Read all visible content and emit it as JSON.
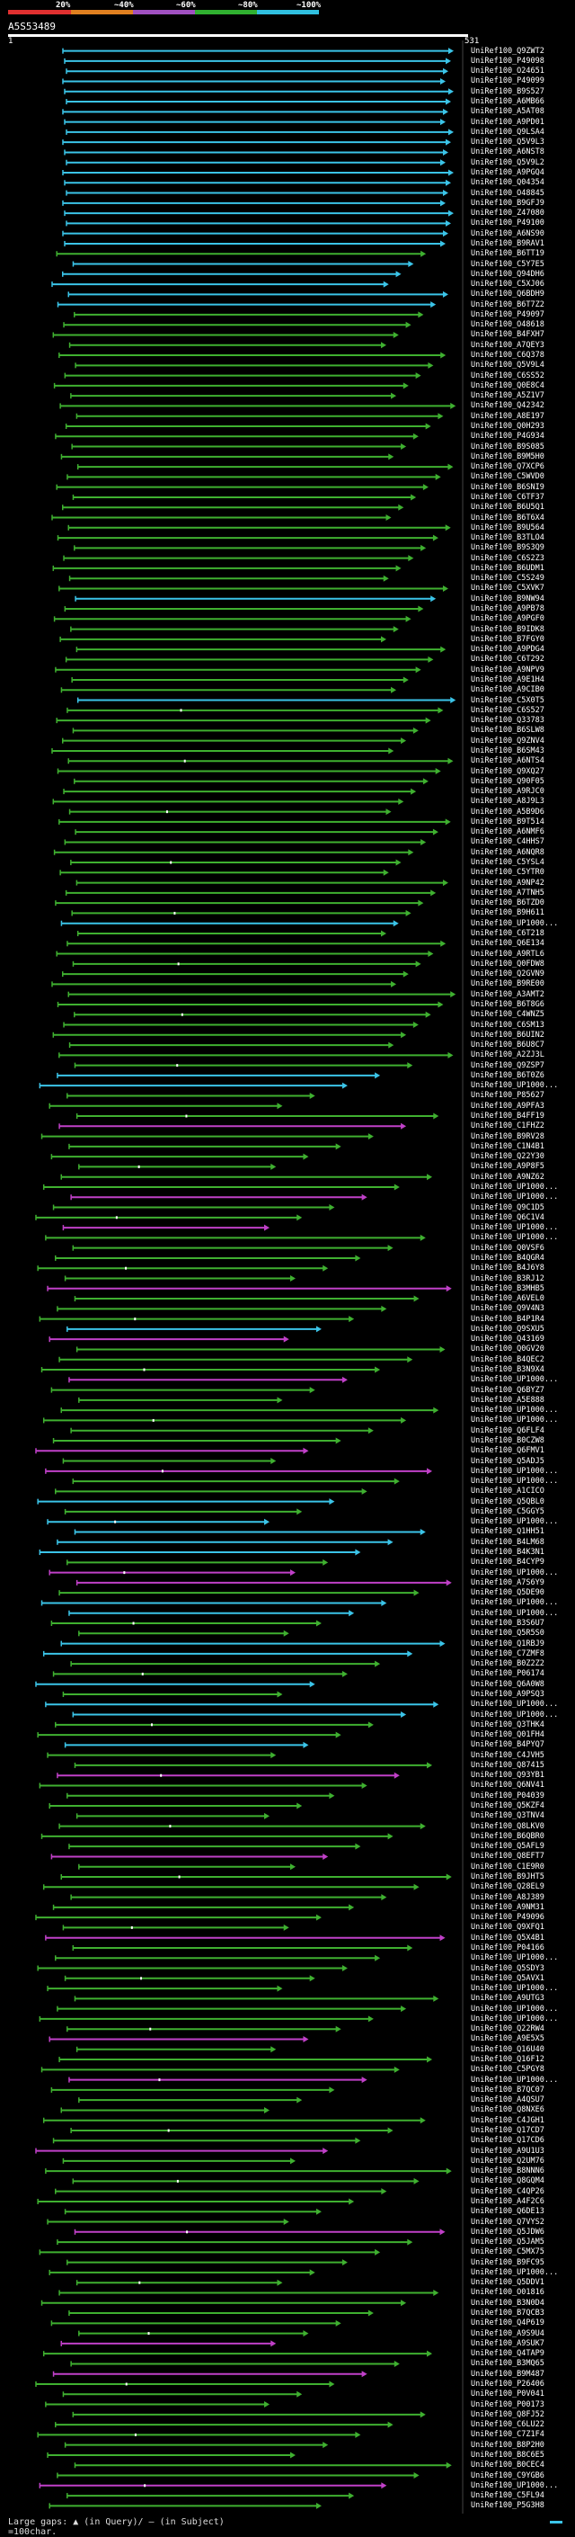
{
  "query": {
    "name": "A5S53489",
    "start": "1",
    "end": "531"
  },
  "scale": {
    "labels": [
      "20%",
      "~40%",
      "~60%",
      "~80%",
      "~100%"
    ],
    "colors": [
      "#e03030",
      "#e08020",
      "#a050c0",
      "#30b030",
      "#30c0e0"
    ]
  },
  "hit_colors": {
    "c": "#3bc4e8",
    "g": "#3fb030",
    "m": "#c040c8"
  },
  "hits": [
    "UniRef100_Q9ZWT2",
    "UniRef100_P49098",
    "UniRef100_O24651",
    "UniRef100_P49099",
    "UniRef100_B9S527",
    "UniRef100_A6MB66",
    "UniRef100_A5AT08",
    "UniRef100_A9PD01",
    "UniRef100_Q9LSA4",
    "UniRef100_Q5V9L3",
    "UniRef100_A6NST8",
    "UniRef100_Q5V9L2",
    "UniRef100_A9PGQ4",
    "UniRef100_Q04354",
    "UniRef100_O48845",
    "UniRef100_B9GFJ9",
    "UniRef100_Z47080",
    "UniRef100_P49100",
    "UniRef100_A6NS90",
    "UniRef100_B9RAV1",
    "UniRef100_B6TT19",
    "UniRef100_C5Y7E5",
    "UniRef100_Q94DH6",
    "UniRef100_C5XJ06",
    "UniRef100_Q6BDH9",
    "UniRef100_B6T7Z2",
    "UniRef100_P49097",
    "UniRef100_O48618",
    "UniRef100_B4FXH7",
    "UniRef100_A7QEY3",
    "UniRef100_C6Q378",
    "UniRef100_Q5V9L4",
    "UniRef100_C6SS52",
    "UniRef100_Q0E8C4",
    "UniRef100_A5Z1V7",
    "UniRef100_Q42342",
    "UniRef100_A8E197",
    "UniRef100_Q0H293",
    "UniRef100_P4G934",
    "UniRef100_B9S085",
    "UniRef100_B9M5H0",
    "UniRef100_Q7XCP6",
    "UniRef100_C5WVD0",
    "UniRef100_B6SNI9",
    "UniRef100_C6TF37",
    "UniRef100_B6U5Q1",
    "UniRef100_B6T6X4",
    "UniRef100_B9U564",
    "UniRef100_B3TLO4",
    "UniRef100_B9S3Q9",
    "UniRef100_C6S2Z3",
    "UniRef100_B6UDM1",
    "UniRef100_C5S249",
    "UniRef100_C5XVK7",
    "UniRef100_B9NW94",
    "UniRef100_A9PB78",
    "UniRef100_A9PGF0",
    "UniRef100_B9IDK8",
    "UniRef100_B7FGY0",
    "UniRef100_A9PDG4",
    "UniRef100_C6T292",
    "UniRef100_A9NPV9",
    "UniRef100_A9E1H4",
    "UniRef100_A9CIB0",
    "UniRef100_C5X0T5",
    "UniRef100_C6S527",
    "UniRef100_Q33783",
    "UniRef100_B6SLW8",
    "UniRef100_Q9ZNV4",
    "UniRef100_B6SM43",
    "UniRef100_A6NTS4",
    "UniRef100_Q9XQ27",
    "UniRef100_Q90F05",
    "UniRef100_A9RJC0",
    "UniRef100_A8J9L3",
    "UniRef100_A5B9D6",
    "UniRef100_B9T514",
    "UniRef100_A6NMF6",
    "UniRef100_C4HHS7",
    "UniRef100_A6NQR8",
    "UniRef100_C5YSL4",
    "UniRef100_C5YTR0",
    "UniRef100_A9NP42",
    "UniRef100_A7TNH5",
    "UniRef100_B6TZD0",
    "UniRef100_B9H611",
    "UniRef100_UP1000...",
    "UniRef100_C6T218",
    "UniRef100_Q6E134",
    "UniRef100_A9RTL6",
    "UniRef100_Q0FDW8",
    "UniRef100_Q2GVN9",
    "UniRef100_B9RE00",
    "UniRef100_A3AMT2",
    "UniRef100_B6T8G6",
    "UniRef100_C4WNZ5",
    "UniRef100_C6SM13",
    "UniRef100_B6UIN2",
    "UniRef100_B6U8C7",
    "UniRef100_A2ZJ3L",
    "UniRef100_Q9ZSP7",
    "UniRef100_B6T0Z6",
    "UniRef100_UP1000...",
    "UniRef100_P85627",
    "UniRef100_A9PFA3",
    "UniRef100_B4FF19",
    "UniRef100_C1FHZ2",
    "UniRef100_B9RV28",
    "UniRef100_C1N4B1",
    "UniRef100_Q22Y30",
    "UniRef100_A9P8F5",
    "UniRef100_A9NZ62",
    "UniRef100_UP1000...",
    "UniRef100_UP1000...",
    "UniRef100_Q9C1D5",
    "UniRef100_Q6C1V4",
    "UniRef100_UP1000...",
    "UniRef100_UP1000...",
    "UniRef100_Q0VSF6",
    "UniRef100_B4QGR4",
    "UniRef100_B4J6Y8",
    "UniRef100_B3RJ12",
    "UniRef100_B3MHB5",
    "UniRef100_A6VEL0",
    "UniRef100_Q9V4N3",
    "UniRef100_B4P1R4",
    "UniRef100_Q9SXU5",
    "UniRef100_Q43169",
    "UniRef100_Q0GV20",
    "UniRef100_B4QEC2",
    "UniRef100_B3N9X4",
    "UniRef100_UP1000...",
    "UniRef100_Q6BYZ7",
    "UniRef100_A5E888",
    "UniRef100_UP1000...",
    "UniRef100_UP1000...",
    "UniRef100_Q6FLF4",
    "UniRef100_B0CZW8",
    "UniRef100_Q6FMV1",
    "UniRef100_Q5ADJ5",
    "UniRef100_UP1000...",
    "UniRef100_UP1000...",
    "UniRef100_A1CICO",
    "UniRef100_Q5QBL0",
    "UniRef100_C5GGY5",
    "UniRef100_UP1000...",
    "UniRef100_Q1HH51",
    "UniRef100_B4LM68",
    "UniRef100_B4K3N1",
    "UniRef100_B4CYP9",
    "UniRef100_UP1000...",
    "UniRef100_A7S6Y9",
    "UniRef100_Q5DE90",
    "UniRef100_UP1000...",
    "UniRef100_UP1000...",
    "UniRef100_B3S6U7",
    "UniRef100_Q5R5S0",
    "UniRef100_Q1RBJ9",
    "UniRef100_C7ZMF8",
    "UniRef100_B0Z2Z2",
    "UniRef100_P06174",
    "UniRef100_Q6A0W8",
    "UniRef100_A9PSQ3",
    "UniRef100_UP1000...",
    "UniRef100_UP1000...",
    "UniRef100_Q3THK4",
    "UniRef100_Q01FH4",
    "UniRef100_B4PYQ7",
    "UniRef100_C4JVH5",
    "UniRef100_Q87415",
    "UniRef100_Q93YB1",
    "UniRef100_Q6NV41",
    "UniRef100_P04039",
    "UniRef100_Q5KZF4",
    "UniRef100_Q3TNV4",
    "UniRef100_Q8LKV0",
    "UniRef100_B6QBR0",
    "UniRef100_Q5AFL9",
    "UniRef100_Q8EFT7",
    "UniRef100_C1E9R0",
    "UniRef100_B9JHT5",
    "UniRef100_Q28EL9",
    "UniRef100_A8J389",
    "UniRef100_A9NM31",
    "UniRef100_P49096",
    "UniRef100_Q9XFQ1",
    "UniRef100_Q5X4B1",
    "UniRef100_P04166",
    "UniRef100_UP1000...",
    "UniRef100_Q5SDY3",
    "UniRef100_Q5AVX1",
    "UniRef100_UP1000...",
    "UniRef100_A9UTG3",
    "UniRef100_UP1000...",
    "UniRef100_UP1000...",
    "UniRef100_Q22RW4",
    "UniRef100_A9E5X5",
    "UniRef100_Q16U40",
    "UniRef100_Q16F12",
    "UniRef100_C5PGY8",
    "UniRef100_UP1000...",
    "UniRef100_B7QC07",
    "UniRef100_A4QSU7",
    "UniRef100_Q8NXE6",
    "UniRef100_C4JGH1",
    "UniRef100_Q17CD7",
    "UniRef100_Q17CD6",
    "UniRef100_A9U1U3",
    "UniRef100_Q2UM76",
    "UniRef100_B8NNN6",
    "UniRef100_Q8GQM4",
    "UniRef100_C4QP26",
    "UniRef100_A4F2C6",
    "UniRef100_Q6DE13",
    "UniRef100_Q7VYS2",
    "UniRef100_Q5JDW6",
    "UniRef100_Q5JAM5",
    "UniRef100_C5MX75",
    "UniRef100_B9FC95",
    "UniRef100_UP1000...",
    "UniRef100_Q5DDV1",
    "UniRef100_O01816",
    "UniRef100_B3N0D4",
    "UniRef100_B7QCB3",
    "UniRef100_Q4P619",
    "UniRef100_A9S9U4",
    "UniRef100_A9SUK7",
    "UniRef100_Q4TAP9",
    "UniRef100_B3MQ65",
    "UniRef100_B9M487",
    "UniRef100_P26406",
    "UniRef100_P0V041",
    "UniRef100_P00173",
    "UniRef100_Q8FJ52",
    "UniRef100_C6LU22",
    "UniRef100_C7Z1F4",
    "UniRef100_B8P2H0",
    "UniRef100_B8C6E5",
    "UniRef100_B0CEC4",
    "UniRef100_C9YGB6",
    "UniRef100_UP1000...",
    "UniRef100_C5FL94",
    "UniRef100_P5G3H8"
  ],
  "legend": {
    "text": "Large gaps: ▲ (in Query)/ – (in Subject)",
    "scale_text": "=100char."
  }
}
